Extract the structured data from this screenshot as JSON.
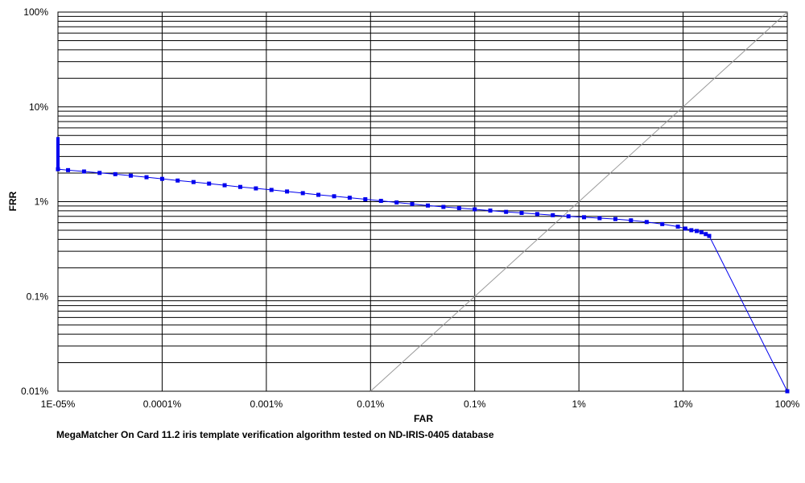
{
  "chart_data": {
    "type": "line",
    "xlabel": "FAR",
    "ylabel": "FRR",
    "x_scale": "log",
    "y_scale": "log",
    "xlim": [
      1e-05,
      100
    ],
    "ylim": [
      0.01,
      100
    ],
    "grid": true,
    "x_ticks": [
      {
        "value": 1e-05,
        "label": "1E-05%"
      },
      {
        "value": 0.0001,
        "label": "0.0001%"
      },
      {
        "value": 0.001,
        "label": "0.001%"
      },
      {
        "value": 0.01,
        "label": "0.01%"
      },
      {
        "value": 0.1,
        "label": "0.1%"
      },
      {
        "value": 1,
        "label": "1%"
      },
      {
        "value": 10,
        "label": "10%"
      },
      {
        "value": 100,
        "label": "100%"
      }
    ],
    "y_ticks": [
      {
        "value": 0.01,
        "label": "0.01%"
      },
      {
        "value": 0.1,
        "label": "0.1%"
      },
      {
        "value": 1,
        "label": "1%"
      },
      {
        "value": 10,
        "label": "10%"
      },
      {
        "value": 100,
        "label": "100%"
      }
    ],
    "reference_line": {
      "x": [
        0.01,
        100
      ],
      "y": [
        0.01,
        100
      ],
      "color": "#9a9a9a"
    },
    "series": [
      {
        "color": "#0000ee",
        "x": [
          1e-05,
          1e-05,
          1.25e-05,
          1.78e-05,
          2.51e-05,
          3.55e-05,
          5e-05,
          7.08e-05,
          0.0001,
          0.000141,
          0.0002,
          0.000282,
          0.000398,
          0.000562,
          0.000794,
          0.00112,
          0.00158,
          0.00224,
          0.00316,
          0.00447,
          0.00631,
          0.00891,
          0.0126,
          0.0178,
          0.0251,
          0.0355,
          0.0501,
          0.0708,
          0.1,
          0.141,
          0.2,
          0.282,
          0.398,
          0.562,
          0.794,
          1.12,
          1.58,
          2.24,
          3.16,
          4.47,
          6.31,
          8.91,
          10.5,
          12.0,
          13.5,
          15.0,
          16.5,
          17.8,
          100
        ],
        "y": [
          4.8,
          2.2,
          2.15,
          2.08,
          2.01,
          1.95,
          1.88,
          1.81,
          1.74,
          1.67,
          1.61,
          1.55,
          1.49,
          1.43,
          1.38,
          1.33,
          1.28,
          1.23,
          1.18,
          1.14,
          1.1,
          1.06,
          1.02,
          0.98,
          0.945,
          0.91,
          0.88,
          0.855,
          0.83,
          0.805,
          0.78,
          0.76,
          0.74,
          0.72,
          0.7,
          0.685,
          0.67,
          0.655,
          0.635,
          0.61,
          0.58,
          0.545,
          0.52,
          0.5,
          0.49,
          0.475,
          0.455,
          0.435,
          0.01
        ]
      }
    ]
  },
  "caption": "MegaMatcher On Card 11.2 iris template verification algorithm tested on ND-IRIS-0405 database"
}
